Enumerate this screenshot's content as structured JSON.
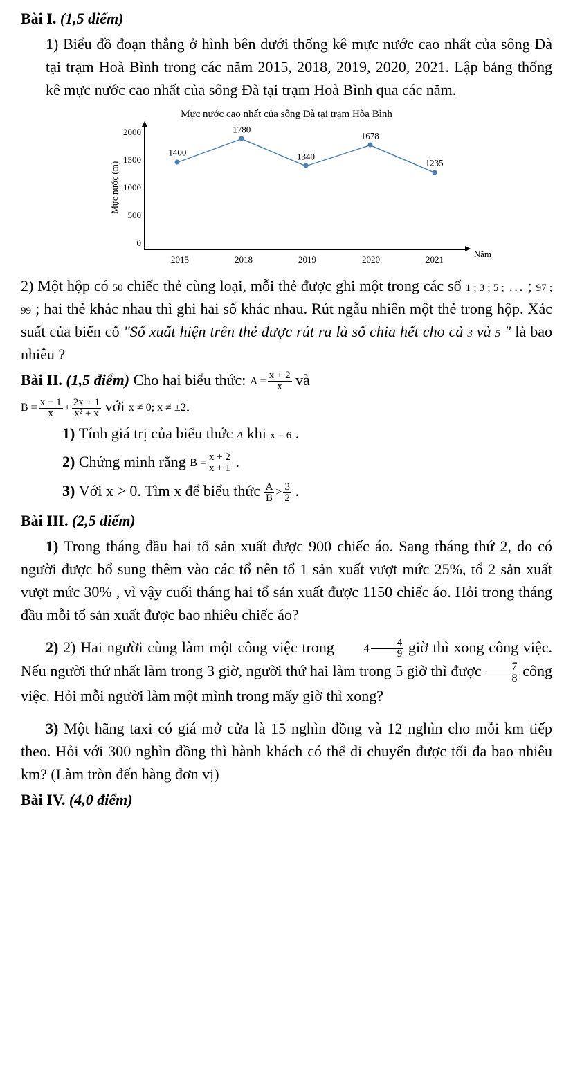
{
  "bai1": {
    "title": "Bài I.",
    "points": "(1,5 điểm)",
    "q1_text": "1) Biểu đồ đoạn thẳng ở hình bên dưới thống kê mực nước cao nhất của sông Đà tại trạm Hoà Bình trong các năm 2015, 2018, 2019, 2020, 2021. Lập bảng thống kê mực nước cao nhất của sông Đà tại trạm Hoà Bình qua các năm.",
    "chart": {
      "type": "line",
      "title": "Mực nước cao nhất của sông Đà tại trạm Hòa Bình",
      "y_label": "Mực nước (m)",
      "x_label": "Năm",
      "ylim": [
        0,
        2000
      ],
      "yticks": [
        "2000",
        "1500",
        "1000",
        "500",
        "0"
      ],
      "categories": [
        "2015",
        "2018",
        "2019",
        "2020",
        "2021"
      ],
      "values": [
        1400,
        1780,
        1340,
        1678,
        1235
      ],
      "labels": [
        "1400",
        "1780",
        "1340",
        "1678",
        "1235"
      ],
      "line_color": "#4a7fb0",
      "marker_color": "#4a7fb0",
      "background_color": "#ffffff",
      "axis_color": "#000000",
      "label_fontsize": 13
    },
    "q2_a": "2) Một hộp có ",
    "q2_b": "50",
    "q2_c": " chiếc thẻ cùng loại, mỗi thẻ được ghi một trong các số ",
    "q2_d": "1 ; 3 ; 5 ;",
    "q2_e": " … ; ",
    "q2_f": "97 ; 99",
    "q2_g": " ; hai thẻ khác nhau thì ghi hai số khác nhau. Rút ngẫu nhiên một thẻ trong hộp. Xác suất của biến cố ",
    "q2_italic": "\"Số xuất hiện trên thẻ được rút ra là số chia hết cho cả ",
    "q2_h": "3",
    "q2_i": " và ",
    "q2_j": "5",
    "q2_end": " \"",
    "q2_tail": " là bao nhiêu ?"
  },
  "bai2": {
    "title": "Bài II.",
    "points": "(1,5 điểm)",
    "lead": " Cho hai biểu thức: ",
    "A_eq": "A =",
    "A_num": "x + 2",
    "A_den": "x",
    "and": " và ",
    "B_eq": "B =",
    "B1_num": "x − 1",
    "B1_den": "x",
    "plus": "+",
    "B2_num": "2x + 1",
    "B2_den": "x² + x",
    "with": " với ",
    "cond": "x ≠ 0;  x ≠ ±2",
    "dot": ".",
    "q1_a": "1) ",
    "q1_b": "Tính giá trị của biểu thức ",
    "q1_c": "A",
    "q1_d": " khi ",
    "q1_e": "x = 6",
    "q1_f": " .",
    "q2_a": "2) ",
    "q2_b": "Chứng minh rằng ",
    "q2_Beq": "B =",
    "q2_num": "x  + 2",
    "q2_den": "x  + 1",
    "q2_dot": " .",
    "q3_a": "3) ",
    "q3_b": "Với x > 0. Tìm x để biểu thức ",
    "q3_lhs_num": "A",
    "q3_lhs_den": "B",
    "q3_gt": ">",
    "q3_rhs_num": "3",
    "q3_rhs_den": "2",
    "q3_dot": " ."
  },
  "bai3": {
    "title": "Bài III.",
    "points": "(2,5 điểm)",
    "q1": "1) Trong tháng đầu hai tổ sản xuất được 900 chiếc áo. Sang tháng thứ 2, do có người được bổ sung thêm vào các tổ nên tổ 1 sản xuất vượt mức 25%, tổ 2 sản xuất vượt mức 30% , vì vậy cuối tháng hai tổ sản xuất được 1150 chiếc áo. Hỏi trong tháng đầu mỗi tổ sản xuất được bao nhiêu chiếc áo?",
    "q2_a": "2) Hai người cùng làm một công việc trong ",
    "q2_frac_whole": "4",
    "q2_frac_num": "4",
    "q2_frac_den": "9",
    "q2_b": " giờ thì xong công việc. Nếu người thứ nhất làm trong 3 giờ, người thứ hai làm trong 5 giờ thì được ",
    "q2_f2_num": "7",
    "q2_f2_den": "8",
    "q2_c": " công việc. Hỏi mỗi người làm một mình trong mấy giờ thì xong?",
    "q3": "3) Một hãng taxi có giá mở cửa là 15 nghìn đồng và 12 nghìn cho mỗi km tiếp theo. Hỏi với 300 nghìn đồng thì hành khách có thể di chuyển được tối đa bao nhiêu km? (Làm tròn đến hàng đơn vị)"
  },
  "bai4": {
    "title": "Bài IV.",
    "points": "(4,0 điểm)"
  }
}
